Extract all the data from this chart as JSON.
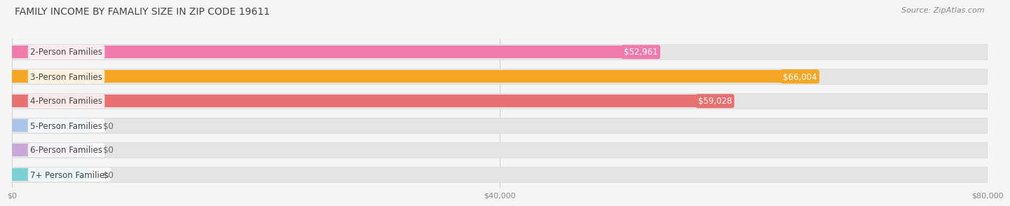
{
  "title": "FAMILY INCOME BY FAMALIY SIZE IN ZIP CODE 19611",
  "source": "Source: ZipAtlas.com",
  "categories": [
    "2-Person Families",
    "3-Person Families",
    "4-Person Families",
    "5-Person Families",
    "6-Person Families",
    "7+ Person Families"
  ],
  "values": [
    52961,
    66004,
    59028,
    0,
    0,
    0
  ],
  "bar_colors": [
    "#f07aaa",
    "#f5a623",
    "#e87070",
    "#aac4ea",
    "#c8a8d8",
    "#7dd0d4"
  ],
  "value_labels": [
    "$52,961",
    "$66,004",
    "$59,028",
    "$0",
    "$0",
    "$0"
  ],
  "xlim": [
    0,
    80000
  ],
  "xticks": [
    0,
    40000,
    80000
  ],
  "xticklabels": [
    "$0",
    "$40,000",
    "$80,000"
  ],
  "background_color": "#f5f5f5",
  "bar_bg_color": "#e4e4e4",
  "bar_bg_border": "#d8d8d8",
  "title_fontsize": 10,
  "source_fontsize": 8,
  "bar_height": 0.62,
  "label_fontsize": 8.5,
  "value_fontsize": 8.5,
  "zero_bar_width": 6500
}
